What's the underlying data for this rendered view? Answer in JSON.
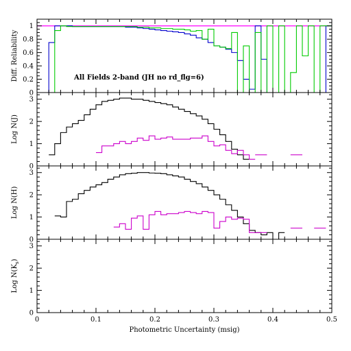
{
  "chart_data": [
    {
      "type": "line",
      "ylabel": "Diff. Reliability",
      "annotation": "All Fields 2-band (JH no rd_flg=6)",
      "xlim": [
        0,
        0.5
      ],
      "ylim": [
        0,
        1.1
      ],
      "yticks": [
        "0",
        "0.2",
        "0.4",
        "0.6",
        "0.8",
        "1"
      ],
      "ytick_values": [
        0,
        0.2,
        0.4,
        0.6,
        0.8,
        1.0
      ],
      "series": [
        {
          "color": "#ff00ff",
          "x": [
            0,
            0.5
          ],
          "y": [
            1.0,
            1.0
          ]
        },
        {
          "color": "#0000cc",
          "x": [
            0,
            0.01,
            0.02,
            0.03,
            0.04,
            0.05,
            0.06,
            0.07,
            0.08,
            0.09,
            0.1,
            0.11,
            0.12,
            0.13,
            0.14,
            0.15,
            0.16,
            0.17,
            0.18,
            0.19,
            0.2,
            0.21,
            0.22,
            0.23,
            0.24,
            0.25,
            0.26,
            0.27,
            0.28,
            0.29,
            0.3,
            0.31,
            0.32,
            0.33,
            0.34,
            0.35,
            0.36,
            0.37,
            0.38,
            0.39,
            0.4,
            0.41,
            0.42,
            0.43,
            0.44,
            0.45,
            0.46,
            0.47,
            0.48,
            0.49,
            0.5
          ],
          "y": [
            0,
            0,
            0.75,
            1.0,
            1.0,
            1.0,
            0.99,
            0.99,
            0.99,
            0.99,
            0.99,
            0.99,
            0.99,
            0.99,
            0.99,
            0.98,
            0.98,
            0.97,
            0.96,
            0.95,
            0.94,
            0.93,
            0.92,
            0.91,
            0.9,
            0.88,
            0.86,
            0.82,
            0.8,
            0.75,
            0.7,
            0.68,
            0.65,
            0.6,
            0.48,
            0.2,
            0.05,
            1.0,
            0.5,
            0.0,
            0.0,
            0.0,
            0.0,
            0.0,
            0.0,
            0.0,
            0.0,
            0.0,
            0.0,
            1.0,
            1.0
          ]
        },
        {
          "color": "#00cc00",
          "x": [
            0,
            0.01,
            0.02,
            0.03,
            0.04,
            0.05,
            0.06,
            0.07,
            0.08,
            0.09,
            0.1,
            0.11,
            0.12,
            0.13,
            0.14,
            0.15,
            0.16,
            0.17,
            0.18,
            0.19,
            0.2,
            0.21,
            0.22,
            0.23,
            0.24,
            0.25,
            0.26,
            0.27,
            0.28,
            0.29,
            0.3,
            0.31,
            0.32,
            0.33,
            0.34,
            0.35,
            0.36,
            0.37,
            0.38,
            0.39,
            0.4,
            0.41,
            0.42,
            0.43,
            0.44,
            0.45,
            0.46,
            0.47,
            0.48,
            0.49,
            0.5
          ],
          "y": [
            0,
            0,
            0,
            0.93,
            1.0,
            0.99,
            0.99,
            0.99,
            0.99,
            0.99,
            0.99,
            0.99,
            0.99,
            0.99,
            0.99,
            0.99,
            0.99,
            0.98,
            0.98,
            0.97,
            0.97,
            0.96,
            0.96,
            0.95,
            0.95,
            0.94,
            0.92,
            0.93,
            0.8,
            0.95,
            0.7,
            0.68,
            0.66,
            0.9,
            0.0,
            0.7,
            0.0,
            0.9,
            0.0,
            1.0,
            0.0,
            1.0,
            0.0,
            0.3,
            1.0,
            0.55,
            1.0,
            0.0,
            1.0,
            1.0,
            1.0
          ]
        }
      ]
    },
    {
      "type": "line",
      "ylabel": "Log N(J)",
      "xlim": [
        0,
        0.5
      ],
      "ylim": [
        0,
        3.3
      ],
      "yticks": [
        "0",
        "1",
        "2",
        "3"
      ],
      "ytick_values": [
        0,
        1,
        2,
        3
      ],
      "series": [
        {
          "color": "#000000",
          "x_start": 0.02,
          "step": 0.01,
          "y": [
            0.5,
            1.0,
            1.5,
            1.75,
            1.9,
            2.05,
            2.3,
            2.55,
            2.75,
            2.9,
            2.95,
            3.0,
            3.05,
            3.05,
            3.0,
            3.0,
            2.95,
            2.9,
            2.85,
            2.8,
            2.75,
            2.65,
            2.55,
            2.45,
            2.35,
            2.25,
            2.1,
            1.9,
            1.65,
            1.4,
            1.1,
            0.75,
            0.5,
            0.3
          ]
        },
        {
          "color": "#cc00cc",
          "segments": [
            {
              "x": [
                0.1,
                0.11,
                0.12,
                0.13,
                0.14,
                0.15,
                0.16,
                0.17,
                0.18,
                0.19,
                0.2,
                0.21,
                0.22,
                0.23,
                0.24,
                0.25,
                0.26,
                0.27,
                0.28,
                0.29,
                0.3,
                0.31,
                0.32,
                0.33,
                0.34,
                0.35,
                0.36
              ],
              "y": [
                0.6,
                0.9,
                0.9,
                1.0,
                1.1,
                1.0,
                1.1,
                1.25,
                1.15,
                1.35,
                1.2,
                1.25,
                1.3,
                1.2,
                1.2,
                1.2,
                1.25,
                1.25,
                1.35,
                1.1,
                0.9,
                0.95,
                0.7,
                0.55,
                0.7,
                0.5,
                0.3
              ]
            },
            {
              "x": [
                0.37,
                0.38
              ],
              "y": [
                0.5,
                0.5
              ]
            },
            {
              "x": [
                0.43,
                0.44
              ],
              "y": [
                0.5,
                0.5
              ]
            }
          ]
        }
      ]
    },
    {
      "type": "line",
      "ylabel": "Log N(H)",
      "xlim": [
        0,
        0.5
      ],
      "ylim": [
        0,
        3.3
      ],
      "yticks": [
        "0",
        "1",
        "2",
        "3"
      ],
      "ytick_values": [
        0,
        1,
        2,
        3
      ],
      "series": [
        {
          "color": "#000000",
          "x_start": 0.03,
          "step": 0.01,
          "y": [
            1.05,
            1.0,
            1.7,
            1.8,
            2.05,
            2.2,
            2.35,
            2.45,
            2.55,
            2.7,
            2.8,
            2.9,
            2.95,
            2.97,
            3.0,
            3.0,
            2.98,
            2.97,
            2.95,
            2.9,
            2.85,
            2.8,
            2.7,
            2.6,
            2.5,
            2.35,
            2.2,
            2.0,
            1.8,
            1.55,
            1.3,
            1.0,
            0.7,
            0.4,
            0.3,
            0.2,
            0.3,
            0.0,
            0.3
          ]
        },
        {
          "color": "#cc00cc",
          "segments": [
            {
              "x": [
                0.13,
                0.14,
                0.15,
                0.16,
                0.17,
                0.18,
                0.19,
                0.2,
                0.21,
                0.22,
                0.23,
                0.24,
                0.25,
                0.26,
                0.27,
                0.28,
                0.29,
                0.3,
                0.31,
                0.32,
                0.33,
                0.34,
                0.35,
                0.36
              ],
              "y": [
                0.55,
                0.7,
                0.45,
                0.95,
                1.05,
                0.45,
                1.1,
                1.25,
                1.1,
                1.15,
                1.15,
                1.2,
                1.25,
                1.2,
                1.15,
                1.25,
                1.2,
                0.5,
                0.8,
                1.0,
                0.9,
                0.95,
                0.9,
                0.3
              ]
            },
            {
              "x": [
                0.37,
                0.38
              ],
              "y": [
                0.3,
                0.3
              ]
            },
            {
              "x": [
                0.43,
                0.44
              ],
              "y": [
                0.5,
                0.5
              ]
            },
            {
              "x": [
                0.47,
                0.48
              ],
              "y": [
                0.5,
                0.5
              ]
            }
          ]
        }
      ]
    },
    {
      "type": "line",
      "ylabel": "Log N(K_s)",
      "xlabel": "Photometric Uncertainty (msig)",
      "xlim": [
        0,
        0.5
      ],
      "ylim": [
        0,
        3.3
      ],
      "xticks": [
        "0",
        "0.1",
        "0.2",
        "0.3",
        "0.4",
        "0.5"
      ],
      "xtick_values": [
        0,
        0.1,
        0.2,
        0.3,
        0.4,
        0.5
      ],
      "yticks": [
        "0",
        "1",
        "2",
        "3"
      ],
      "ytick_values": [
        0,
        1,
        2,
        3
      ],
      "series": []
    }
  ]
}
